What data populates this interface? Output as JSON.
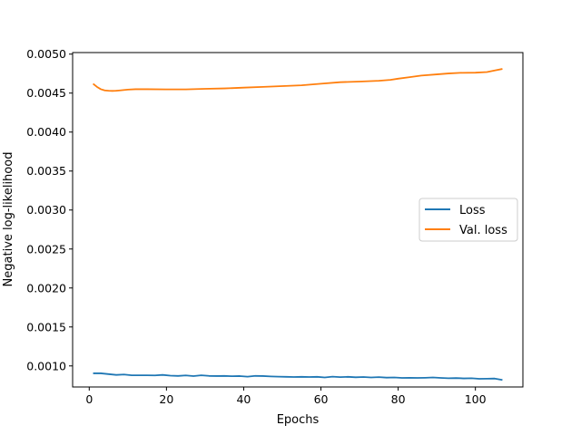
{
  "chart_data": {
    "type": "line",
    "title": "",
    "xlabel": "Epochs",
    "ylabel": "Negative log-likelihood",
    "xlim": [
      -4.3,
      112.3
    ],
    "ylim": [
      0.00073,
      0.00502
    ],
    "xticks": [
      0,
      20,
      40,
      60,
      80,
      100
    ],
    "xtick_labels": [
      "0",
      "20",
      "40",
      "60",
      "80",
      "100"
    ],
    "yticks": [
      0.001,
      0.0015,
      0.002,
      0.0025,
      0.003,
      0.0035,
      0.004,
      0.0045,
      0.005
    ],
    "ytick_labels": [
      "0.0010",
      "0.0015",
      "0.0020",
      "0.0025",
      "0.0030",
      "0.0035",
      "0.0040",
      "0.0045",
      "0.0050"
    ],
    "grid": false,
    "legend_position": "right",
    "series": [
      {
        "name": "Loss",
        "color": "#1f77b4",
        "x": [
          1,
          3,
          5,
          7,
          9,
          11,
          13,
          15,
          17,
          19,
          21,
          23,
          25,
          27,
          29,
          31,
          33,
          35,
          37,
          39,
          41,
          43,
          45,
          47,
          49,
          51,
          53,
          55,
          57,
          59,
          61,
          63,
          65,
          67,
          69,
          71,
          73,
          75,
          77,
          79,
          81,
          83,
          85,
          87,
          89,
          91,
          93,
          95,
          97,
          99,
          101,
          103,
          105,
          107
        ],
        "y": [
          0.000905,
          0.000905,
          0.000895,
          0.000885,
          0.00089,
          0.00088,
          0.00088,
          0.00088,
          0.000878,
          0.000885,
          0.000875,
          0.000872,
          0.000878,
          0.00087,
          0.00088,
          0.000872,
          0.00087,
          0.000872,
          0.000868,
          0.00087,
          0.000862,
          0.000872,
          0.00087,
          0.000865,
          0.000862,
          0.00086,
          0.000858,
          0.00086,
          0.000858,
          0.00086,
          0.000852,
          0.000862,
          0.000856,
          0.00086,
          0.000854,
          0.000858,
          0.000852,
          0.000856,
          0.00085,
          0.000852,
          0.000846,
          0.000848,
          0.000846,
          0.000848,
          0.000852,
          0.000846,
          0.000842,
          0.000844,
          0.00084,
          0.000842,
          0.000835,
          0.000836,
          0.000838,
          0.00082
        ]
      },
      {
        "name": "Val. loss",
        "color": "#ff7f0e",
        "x": [
          1,
          2,
          3,
          4,
          5,
          6,
          7,
          8,
          10,
          12,
          15,
          20,
          25,
          30,
          35,
          40,
          45,
          50,
          55,
          60,
          65,
          70,
          75,
          78,
          80,
          83,
          86,
          90,
          93,
          96,
          100,
          103,
          105,
          107
        ],
        "y": [
          0.00462,
          0.00458,
          0.00455,
          0.004535,
          0.00453,
          0.004528,
          0.00453,
          0.004535,
          0.004545,
          0.00455,
          0.00455,
          0.004548,
          0.004548,
          0.004555,
          0.00456,
          0.00457,
          0.00458,
          0.00459,
          0.0046,
          0.00462,
          0.00464,
          0.004648,
          0.004658,
          0.00467,
          0.004685,
          0.004705,
          0.004725,
          0.00474,
          0.004752,
          0.00476,
          0.004762,
          0.00477,
          0.00479,
          0.00481
        ]
      }
    ]
  }
}
